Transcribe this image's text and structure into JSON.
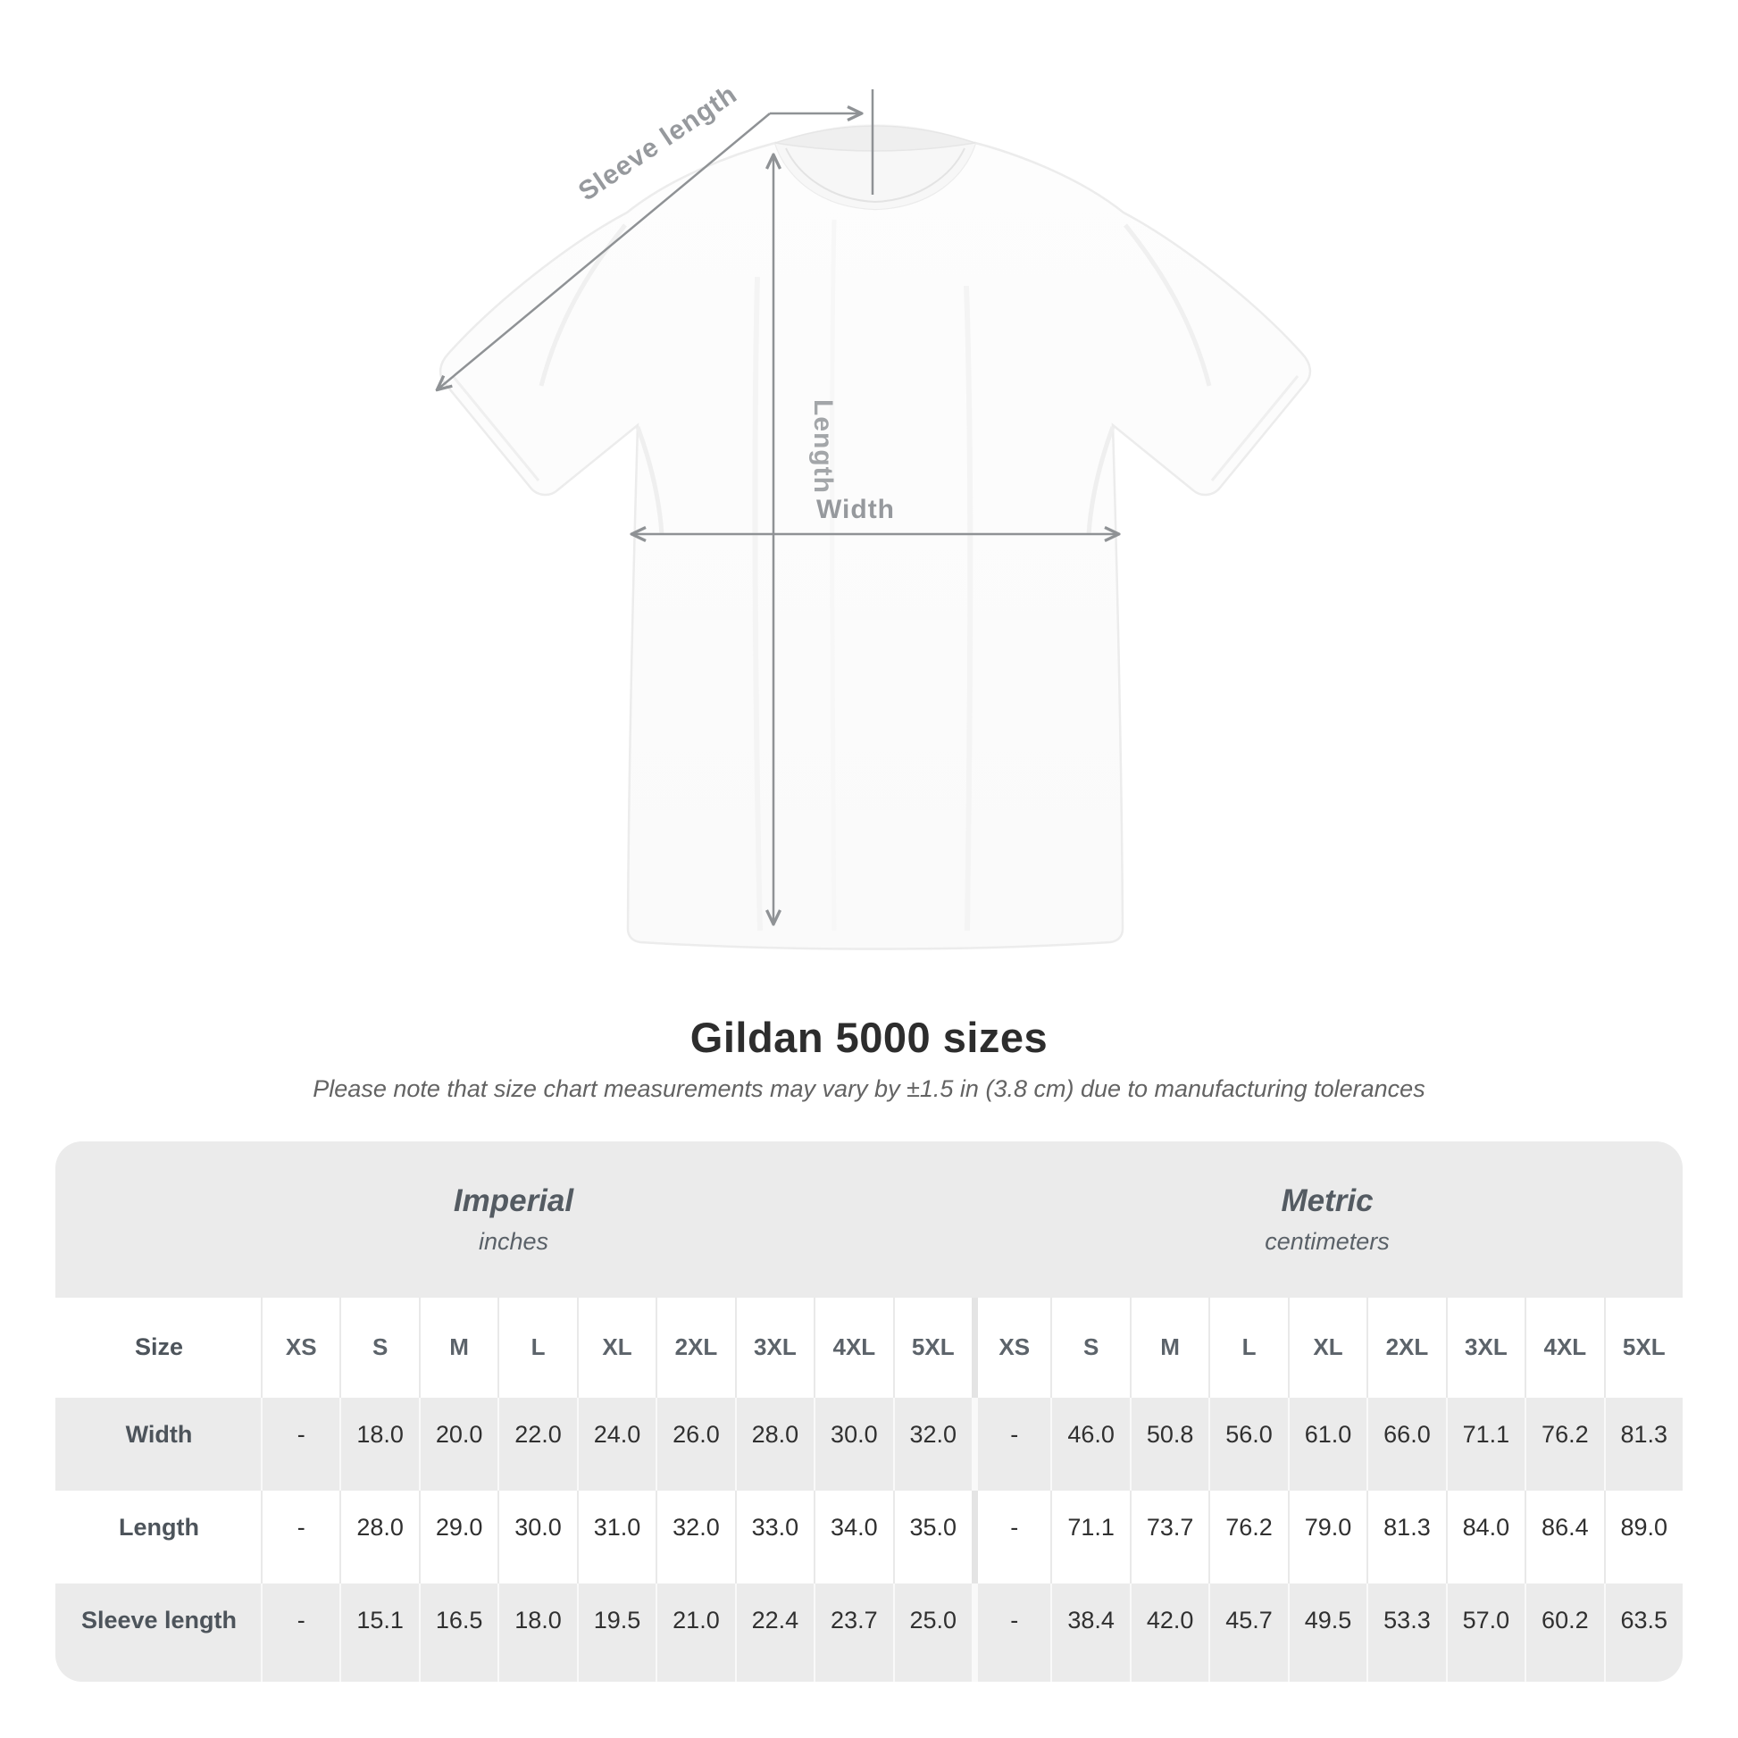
{
  "diagram": {
    "labels": {
      "sleeve_length": "Sleeve length",
      "length": "Length",
      "width": "Width"
    }
  },
  "heading": {
    "title": "Gildan 5000 sizes",
    "note": "Please note that size chart measurements may vary by ±1.5 in (3.8 cm) due to manufacturing tolerances"
  },
  "table": {
    "unit_sections": [
      {
        "name": "Imperial",
        "unit": "inches"
      },
      {
        "name": "Metric",
        "unit": "centimeters"
      }
    ],
    "size_header_label": "Size",
    "sizes": [
      "XS",
      "S",
      "M",
      "L",
      "XL",
      "2XL",
      "3XL",
      "4XL",
      "5XL"
    ],
    "rows": [
      {
        "label": "Width",
        "imperial": [
          "-",
          "18.0",
          "20.0",
          "22.0",
          "24.0",
          "26.0",
          "28.0",
          "30.0",
          "32.0"
        ],
        "metric": [
          "-",
          "46.0",
          "50.8",
          "56.0",
          "61.0",
          "66.0",
          "71.1",
          "76.2",
          "81.3"
        ]
      },
      {
        "label": "Length",
        "imperial": [
          "-",
          "28.0",
          "29.0",
          "30.0",
          "31.0",
          "32.0",
          "33.0",
          "34.0",
          "35.0"
        ],
        "metric": [
          "-",
          "71.1",
          "73.7",
          "76.2",
          "79.0",
          "81.3",
          "84.0",
          "86.4",
          "89.0"
        ]
      },
      {
        "label": "Sleeve length",
        "imperial": [
          "-",
          "15.1",
          "16.5",
          "18.0",
          "19.5",
          "21.0",
          "22.4",
          "23.7",
          "25.0"
        ],
        "metric": [
          "-",
          "38.4",
          "42.0",
          "45.7",
          "49.5",
          "53.3",
          "57.0",
          "60.2",
          "63.5"
        ]
      }
    ]
  },
  "colors": {
    "table_gray": "#ebebeb",
    "arrow_gray": "#8f9295",
    "title_text": "#2d2d2d",
    "note_text": "#636363"
  }
}
